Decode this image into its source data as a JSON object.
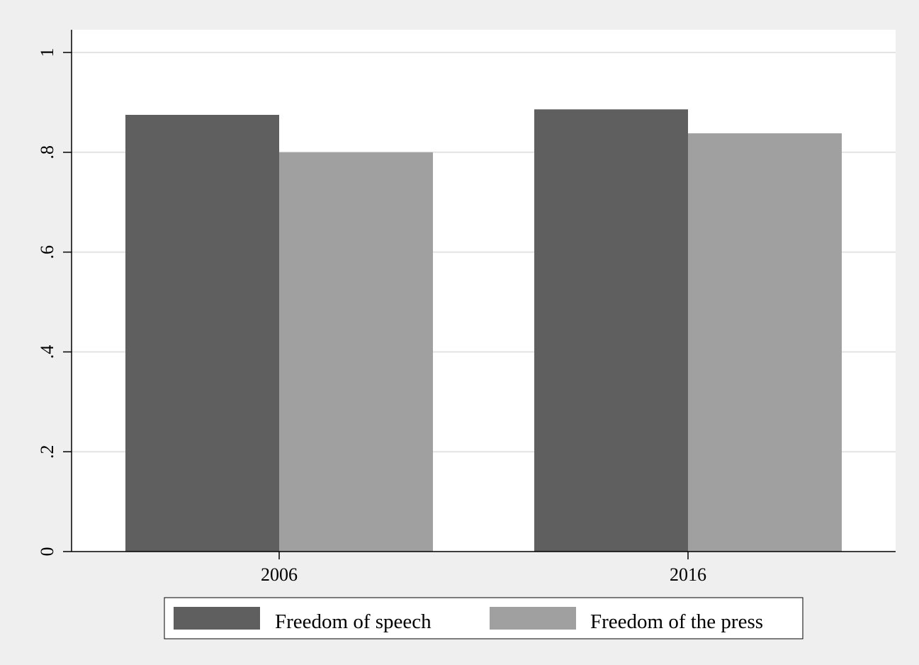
{
  "colors": {
    "background": "#efefef",
    "plot_area": "#ffffff",
    "gridline": "#e3e3e3",
    "axis": "#000000",
    "series_speech": "#5f5f5f",
    "series_press": "#a0a0a0"
  },
  "chart_data": {
    "type": "bar",
    "title": "",
    "xlabel": "",
    "ylabel": "",
    "categories": [
      "2006",
      "2016"
    ],
    "series": [
      {
        "name": "Freedom of speech",
        "values": [
          0.875,
          0.886
        ]
      },
      {
        "name": "Freedom of the press",
        "values": [
          0.8,
          0.838
        ]
      }
    ],
    "ylim": [
      0,
      1.0
    ],
    "yticks": [
      0,
      0.2,
      0.4,
      0.6,
      0.8,
      1.0
    ],
    "ytick_labels": [
      "0",
      ".2",
      ".4",
      ".6",
      ".8",
      "1"
    ],
    "grid": true,
    "legend_position": "bottom"
  }
}
